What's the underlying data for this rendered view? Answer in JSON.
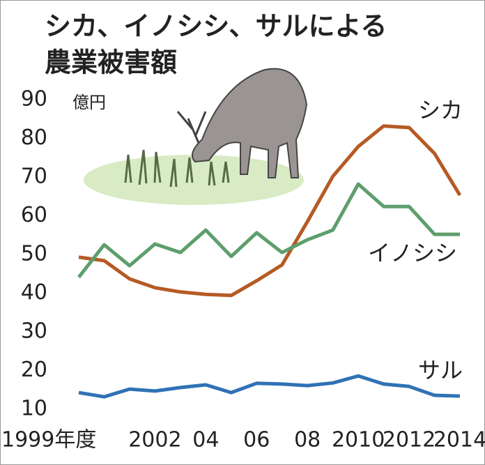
{
  "chart_data": {
    "type": "line",
    "title": [
      "シカ、イノシシ、サルによる",
      "農業被害額"
    ],
    "y_unit": "億円",
    "x": [
      1999,
      2000,
      2001,
      2002,
      2003,
      2004,
      2005,
      2006,
      2007,
      2008,
      2009,
      2010,
      2011,
      2012,
      2013,
      2014
    ],
    "xlim": [
      1999,
      2014
    ],
    "xticks": [
      {
        "value": 1999,
        "label": "1999年度"
      },
      2002,
      {
        "value": 2004,
        "label": "04"
      },
      {
        "value": 2006,
        "label": "06"
      },
      {
        "value": 2008,
        "label": "08"
      },
      2010,
      2012,
      2014
    ],
    "ylim": [
      10,
      90
    ],
    "yticks": [
      10,
      20,
      30,
      40,
      50,
      60,
      70,
      80,
      90
    ],
    "series": [
      {
        "name": "シカ",
        "color": "#b65a24",
        "values": [
          49.3,
          48.4,
          43.7,
          41.4,
          40.3,
          39.7,
          39.4,
          43.2,
          47.3,
          58.5,
          70.2,
          77.9,
          83.2,
          82.8,
          76.1,
          65.3
        ]
      },
      {
        "name": "イノシシ",
        "color": "#5e9e6c",
        "values": [
          44.1,
          52.5,
          47.1,
          52.7,
          50.5,
          56.3,
          49.5,
          55.6,
          50.5,
          53.8,
          56.3,
          68.2,
          62.4,
          62.4,
          55.2,
          55.2
        ]
      },
      {
        "name": "サル",
        "color": "#2f72b5",
        "values": [
          14.3,
          13.2,
          15.2,
          14.7,
          15.6,
          16.3,
          14.3,
          16.7,
          16.5,
          16.1,
          16.8,
          18.6,
          16.5,
          15.9,
          13.6,
          13.4
        ]
      }
    ]
  }
}
